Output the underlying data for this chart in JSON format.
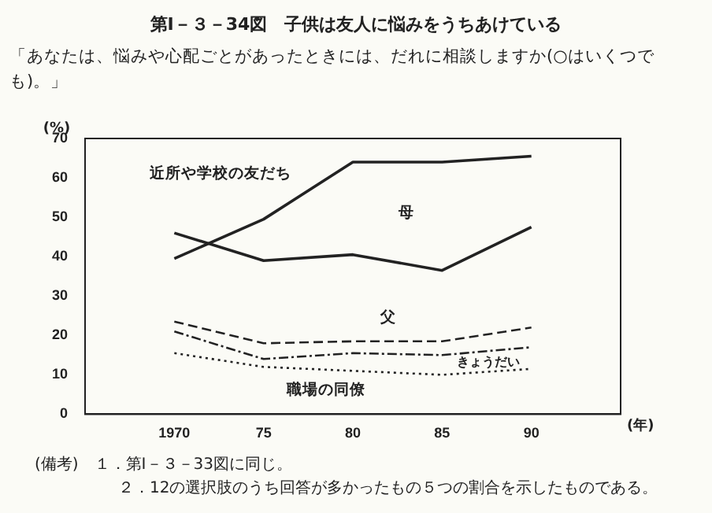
{
  "chart_data": {
    "type": "line",
    "title": "第Ⅰ－３－34図　子供は友人に悩みをうちあけている",
    "subtitle": "「あなたは、悩みや心配ごとがあったときには、だれに相談しますか(○はいくつでも)。」",
    "ylabel": "(%)",
    "xlabel": "(年)",
    "x": [
      1970,
      1975,
      1980,
      1985,
      1990
    ],
    "xlim": [
      1965,
      1995
    ],
    "xticks": [
      {
        "value": 1970,
        "label": "1970"
      },
      {
        "value": 1975,
        "label": "75"
      },
      {
        "value": 1980,
        "label": "80"
      },
      {
        "value": 1985,
        "label": "85"
      },
      {
        "value": 1990,
        "label": "90"
      }
    ],
    "ylim": [
      0,
      70
    ],
    "yticks": [
      0,
      10,
      20,
      30,
      40,
      50,
      60,
      70
    ],
    "series": [
      {
        "name": "近所や学校の友だち",
        "color": "#222222",
        "line_style": "solid",
        "values": [
          39.5,
          49.5,
          64,
          64,
          65.5
        ]
      },
      {
        "name": "母",
        "color": "#222222",
        "line_style": "solid",
        "values": [
          46,
          39,
          40.5,
          36.5,
          47.5
        ]
      },
      {
        "name": "父",
        "color": "#222222",
        "line_style": "dashed",
        "values": [
          23.5,
          18,
          18.5,
          18.5,
          22
        ]
      },
      {
        "name": "きょうだい",
        "color": "#222222",
        "line_style": "dashdot",
        "values": [
          21,
          14,
          15.5,
          15,
          17
        ]
      },
      {
        "name": "職場の同僚",
        "color": "#222222",
        "line_style": "dotted",
        "values": [
          15.5,
          12,
          11,
          10,
          11.5
        ]
      }
    ],
    "grid": false,
    "legend": false,
    "marker": "none",
    "annotations": [
      "(備考)　１．第Ⅰ－３－33図に同じ。",
      "２．12の選択肢のうち回答が多かったもの５つの割合を示したものである。"
    ]
  }
}
